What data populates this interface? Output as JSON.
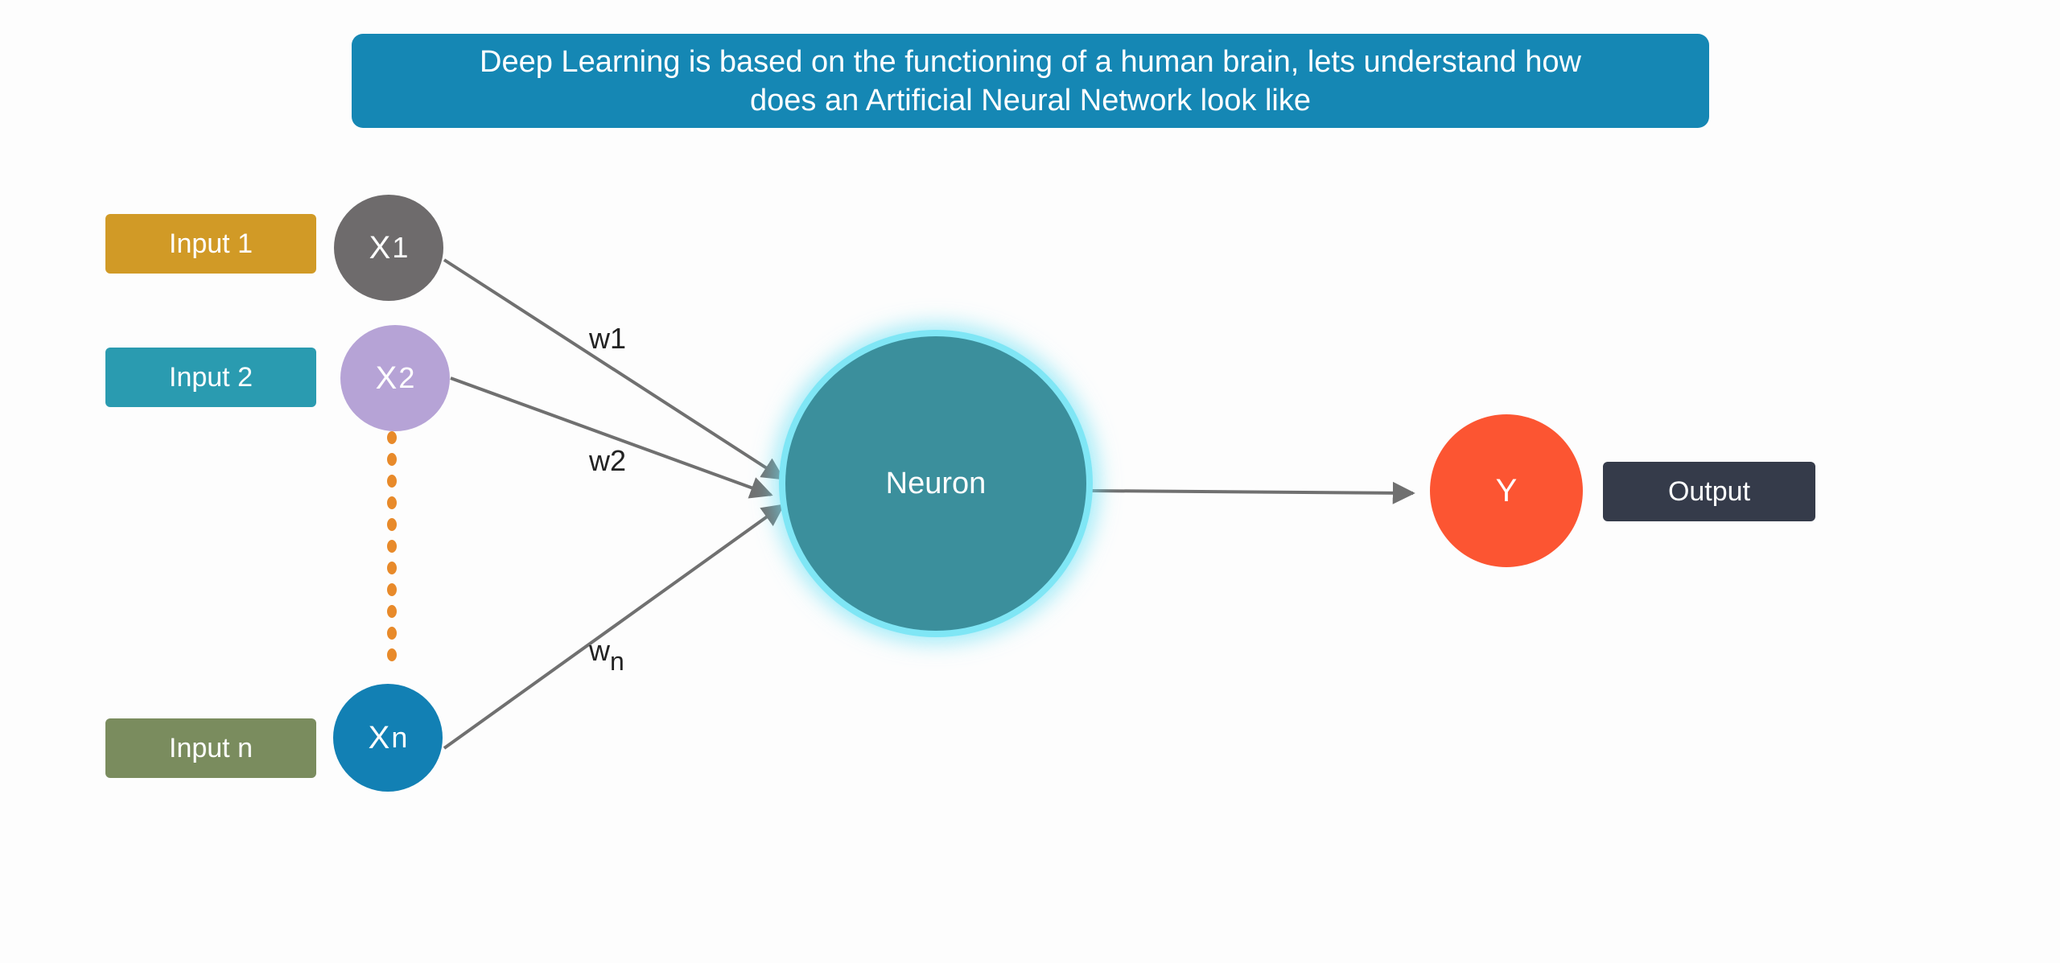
{
  "banner": {
    "line1": "Deep Learning is based on the functioning of a human brain, lets understand how",
    "line2": "does an Artificial Neural Network look like"
  },
  "inputs": [
    {
      "label": "Input 1",
      "node_base": "X",
      "node_sub": "1",
      "label_color": "#d19a26",
      "node_color": "#6e6b6c"
    },
    {
      "label": "Input 2",
      "node_base": "X",
      "node_sub": "2",
      "label_color": "#2a9bb0",
      "node_color": "#b6a3d6"
    },
    {
      "label": "Input n",
      "node_base": "X",
      "node_sub": "n",
      "label_color": "#7a8c5e",
      "node_color": "#1280b4"
    }
  ],
  "weights": [
    {
      "base": "w1",
      "sub": ""
    },
    {
      "base": "w2",
      "sub": ""
    },
    {
      "base": "w",
      "sub": "n"
    }
  ],
  "neuron": {
    "label": "Neuron",
    "color": "#3b8f9c",
    "glow": "#7fe6f5"
  },
  "output": {
    "node_label": "Y",
    "node_color": "#fc5532",
    "label": "Output",
    "label_color": "#353b4a"
  },
  "colors": {
    "arrow": "#707070",
    "dots": "#e88a2a"
  }
}
